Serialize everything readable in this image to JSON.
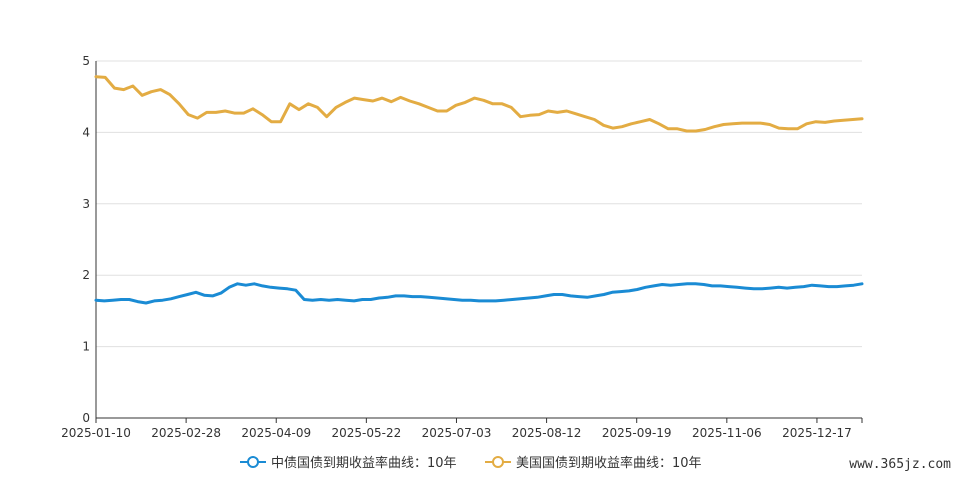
{
  "chart_data": {
    "type": "line",
    "ylim": [
      0,
      5
    ],
    "yticks": [
      0,
      1,
      2,
      3,
      4,
      5
    ],
    "xticks": [
      "2025-01-10",
      "2025-02-28",
      "2025-04-09",
      "2025-05-22",
      "2025-07-03",
      "2025-08-12",
      "2025-09-19",
      "2025-11-06",
      "2025-12-17"
    ],
    "grid": true,
    "legend_position": "bottom-center",
    "series": [
      {
        "name": "中债国债到期收益率曲线：10年",
        "color": "#1a8bd4",
        "values": [
          1.65,
          1.64,
          1.65,
          1.66,
          1.66,
          1.63,
          1.61,
          1.64,
          1.65,
          1.67,
          1.7,
          1.73,
          1.76,
          1.72,
          1.71,
          1.75,
          1.83,
          1.88,
          1.86,
          1.88,
          1.85,
          1.83,
          1.82,
          1.81,
          1.79,
          1.66,
          1.65,
          1.66,
          1.65,
          1.66,
          1.65,
          1.64,
          1.66,
          1.66,
          1.68,
          1.69,
          1.71,
          1.71,
          1.7,
          1.7,
          1.69,
          1.68,
          1.67,
          1.66,
          1.65,
          1.65,
          1.64,
          1.64,
          1.64,
          1.65,
          1.66,
          1.67,
          1.68,
          1.69,
          1.71,
          1.73,
          1.73,
          1.71,
          1.7,
          1.69,
          1.71,
          1.73,
          1.76,
          1.77,
          1.78,
          1.8,
          1.83,
          1.85,
          1.87,
          1.86,
          1.87,
          1.88,
          1.88,
          1.87,
          1.85,
          1.85,
          1.84,
          1.83,
          1.82,
          1.81,
          1.81,
          1.82,
          1.83,
          1.82,
          1.83,
          1.84,
          1.86,
          1.85,
          1.84,
          1.84,
          1.85,
          1.86,
          1.88
        ]
      },
      {
        "name": "美国国债到期收益率曲线：10年",
        "color": "#e3ac43",
        "values": [
          4.78,
          4.77,
          4.62,
          4.6,
          4.65,
          4.52,
          4.57,
          4.6,
          4.53,
          4.4,
          4.25,
          4.2,
          4.28,
          4.28,
          4.3,
          4.27,
          4.27,
          4.33,
          4.25,
          4.15,
          4.15,
          4.4,
          4.32,
          4.4,
          4.35,
          4.22,
          4.35,
          4.42,
          4.48,
          4.46,
          4.44,
          4.48,
          4.43,
          4.49,
          4.44,
          4.4,
          4.35,
          4.3,
          4.3,
          4.38,
          4.42,
          4.48,
          4.45,
          4.4,
          4.4,
          4.35,
          4.22,
          4.24,
          4.25,
          4.3,
          4.28,
          4.3,
          4.26,
          4.22,
          4.18,
          4.1,
          4.06,
          4.08,
          4.12,
          4.15,
          4.18,
          4.12,
          4.05,
          4.05,
          4.02,
          4.02,
          4.04,
          4.08,
          4.11,
          4.12,
          4.13,
          4.13,
          4.13,
          4.11,
          4.06,
          4.05,
          4.05,
          4.12,
          4.15,
          4.14,
          4.16,
          4.17,
          4.18,
          4.19
        ]
      }
    ]
  },
  "watermark": "www.365jz.com"
}
